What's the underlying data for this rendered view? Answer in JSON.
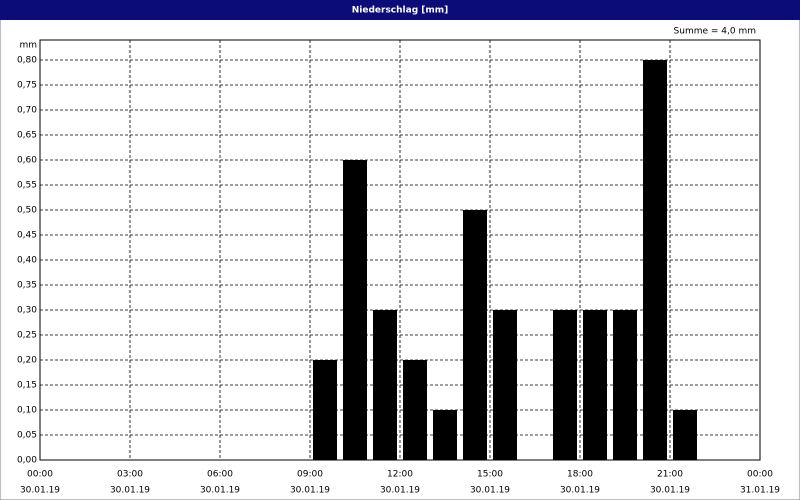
{
  "chart_data": {
    "type": "bar",
    "title": "Niederschlag [mm]",
    "y_label": "mm",
    "annotation": "Summe = 4,0 mm",
    "x": [
      0,
      1,
      2,
      3,
      4,
      5,
      6,
      7,
      8,
      9,
      10,
      11,
      12,
      13,
      14,
      15,
      16,
      17,
      18,
      19,
      20,
      21,
      22,
      23
    ],
    "values": [
      0,
      0,
      0,
      0,
      0,
      0,
      0,
      0,
      0,
      0.2,
      0.6,
      0.3,
      0.2,
      0.1,
      0.5,
      0.3,
      0,
      0.3,
      0.3,
      0.3,
      0.8,
      0.1,
      0,
      0
    ],
    "color": "#000000",
    "xlim": [
      0,
      24
    ],
    "xticks": [
      {
        "value": 0,
        "label": "00:00"
      },
      {
        "value": 3,
        "label": "03:00"
      },
      {
        "value": 6,
        "label": "06:00"
      },
      {
        "value": 9,
        "label": "09:00"
      },
      {
        "value": 12,
        "label": "12:00"
      },
      {
        "value": 15,
        "label": "15:00"
      },
      {
        "value": 18,
        "label": "18:00"
      },
      {
        "value": 21,
        "label": "21:00"
      },
      {
        "value": 24,
        "label": "00:00"
      }
    ],
    "xtick_dates": [
      "30.01.19",
      "30.01.19",
      "30.01.19",
      "30.01.19",
      "30.01.19",
      "30.01.19",
      "30.01.19",
      "30.01.19",
      "31.01.19"
    ],
    "ylim": [
      0,
      0.84
    ],
    "yticks": [
      {
        "value": 0,
        "label": "0,00"
      },
      {
        "value": 0.05,
        "label": "0,05"
      },
      {
        "value": 0.1,
        "label": "0,10"
      },
      {
        "value": 0.15,
        "label": "0,15"
      },
      {
        "value": 0.2,
        "label": "0,20"
      },
      {
        "value": 0.25,
        "label": "0,25"
      },
      {
        "value": 0.3,
        "label": "0,30"
      },
      {
        "value": 0.35,
        "label": "0,35"
      },
      {
        "value": 0.4,
        "label": "0,40"
      },
      {
        "value": 0.45,
        "label": "0,45"
      },
      {
        "value": 0.5,
        "label": "0,50"
      },
      {
        "value": 0.55,
        "label": "0,55"
      },
      {
        "value": 0.6,
        "label": "0,60"
      },
      {
        "value": 0.65,
        "label": "0,65"
      },
      {
        "value": 0.7,
        "label": "0,70"
      },
      {
        "value": 0.75,
        "label": "0,75"
      },
      {
        "value": 0.8,
        "label": "0,80"
      }
    ],
    "grid": true
  }
}
